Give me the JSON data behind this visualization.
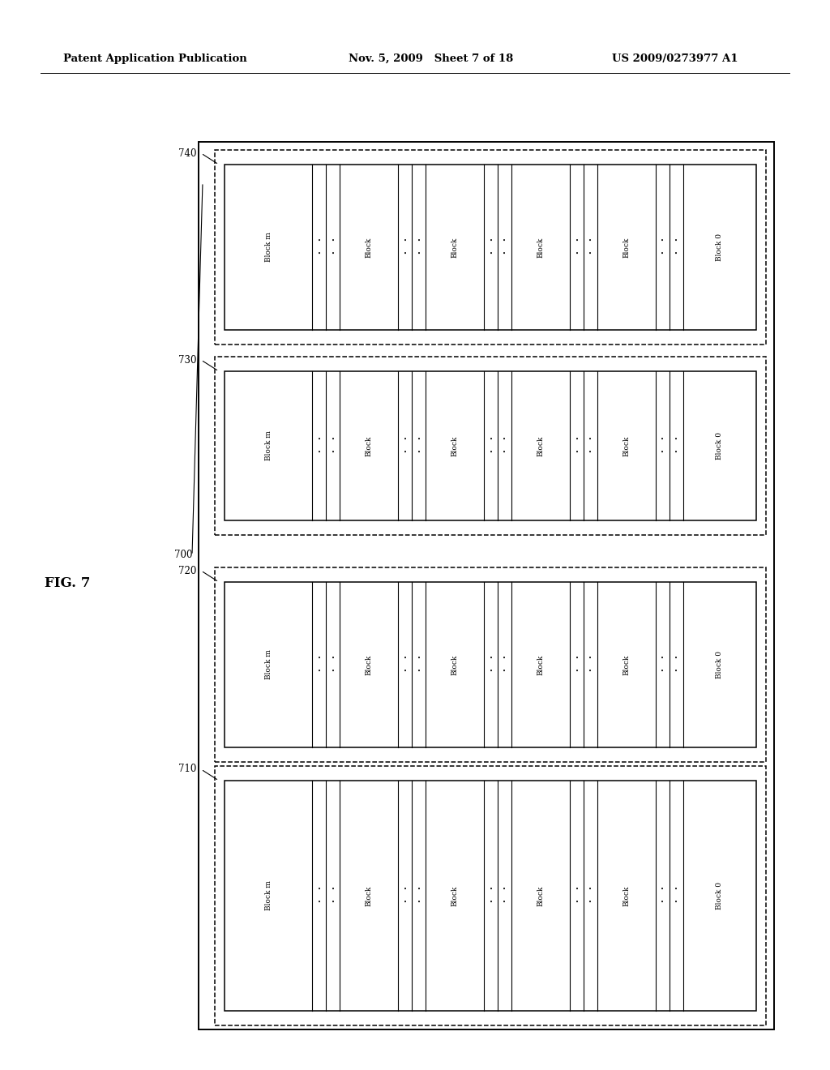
{
  "bg_color": "#ffffff",
  "header_left": "Patent Application Publication",
  "header_mid": "Nov. 5, 2009   Sheet 7 of 18",
  "header_right": "US 2009/0273977 A1",
  "fig_label": "FIG. 7",
  "outer_label": "700",
  "plane_labels": [
    "740",
    "730",
    "720",
    "710"
  ],
  "col_widths": [
    1.8,
    0.28,
    0.28,
    1.2,
    0.28,
    0.28,
    1.2,
    0.28,
    0.28,
    1.2,
    0.28,
    0.28,
    1.2,
    0.28,
    0.28,
    1.5
  ],
  "block_texts": {
    "first": "Block m",
    "middle": "Block",
    "last": "Block 0",
    "dots": "..."
  }
}
